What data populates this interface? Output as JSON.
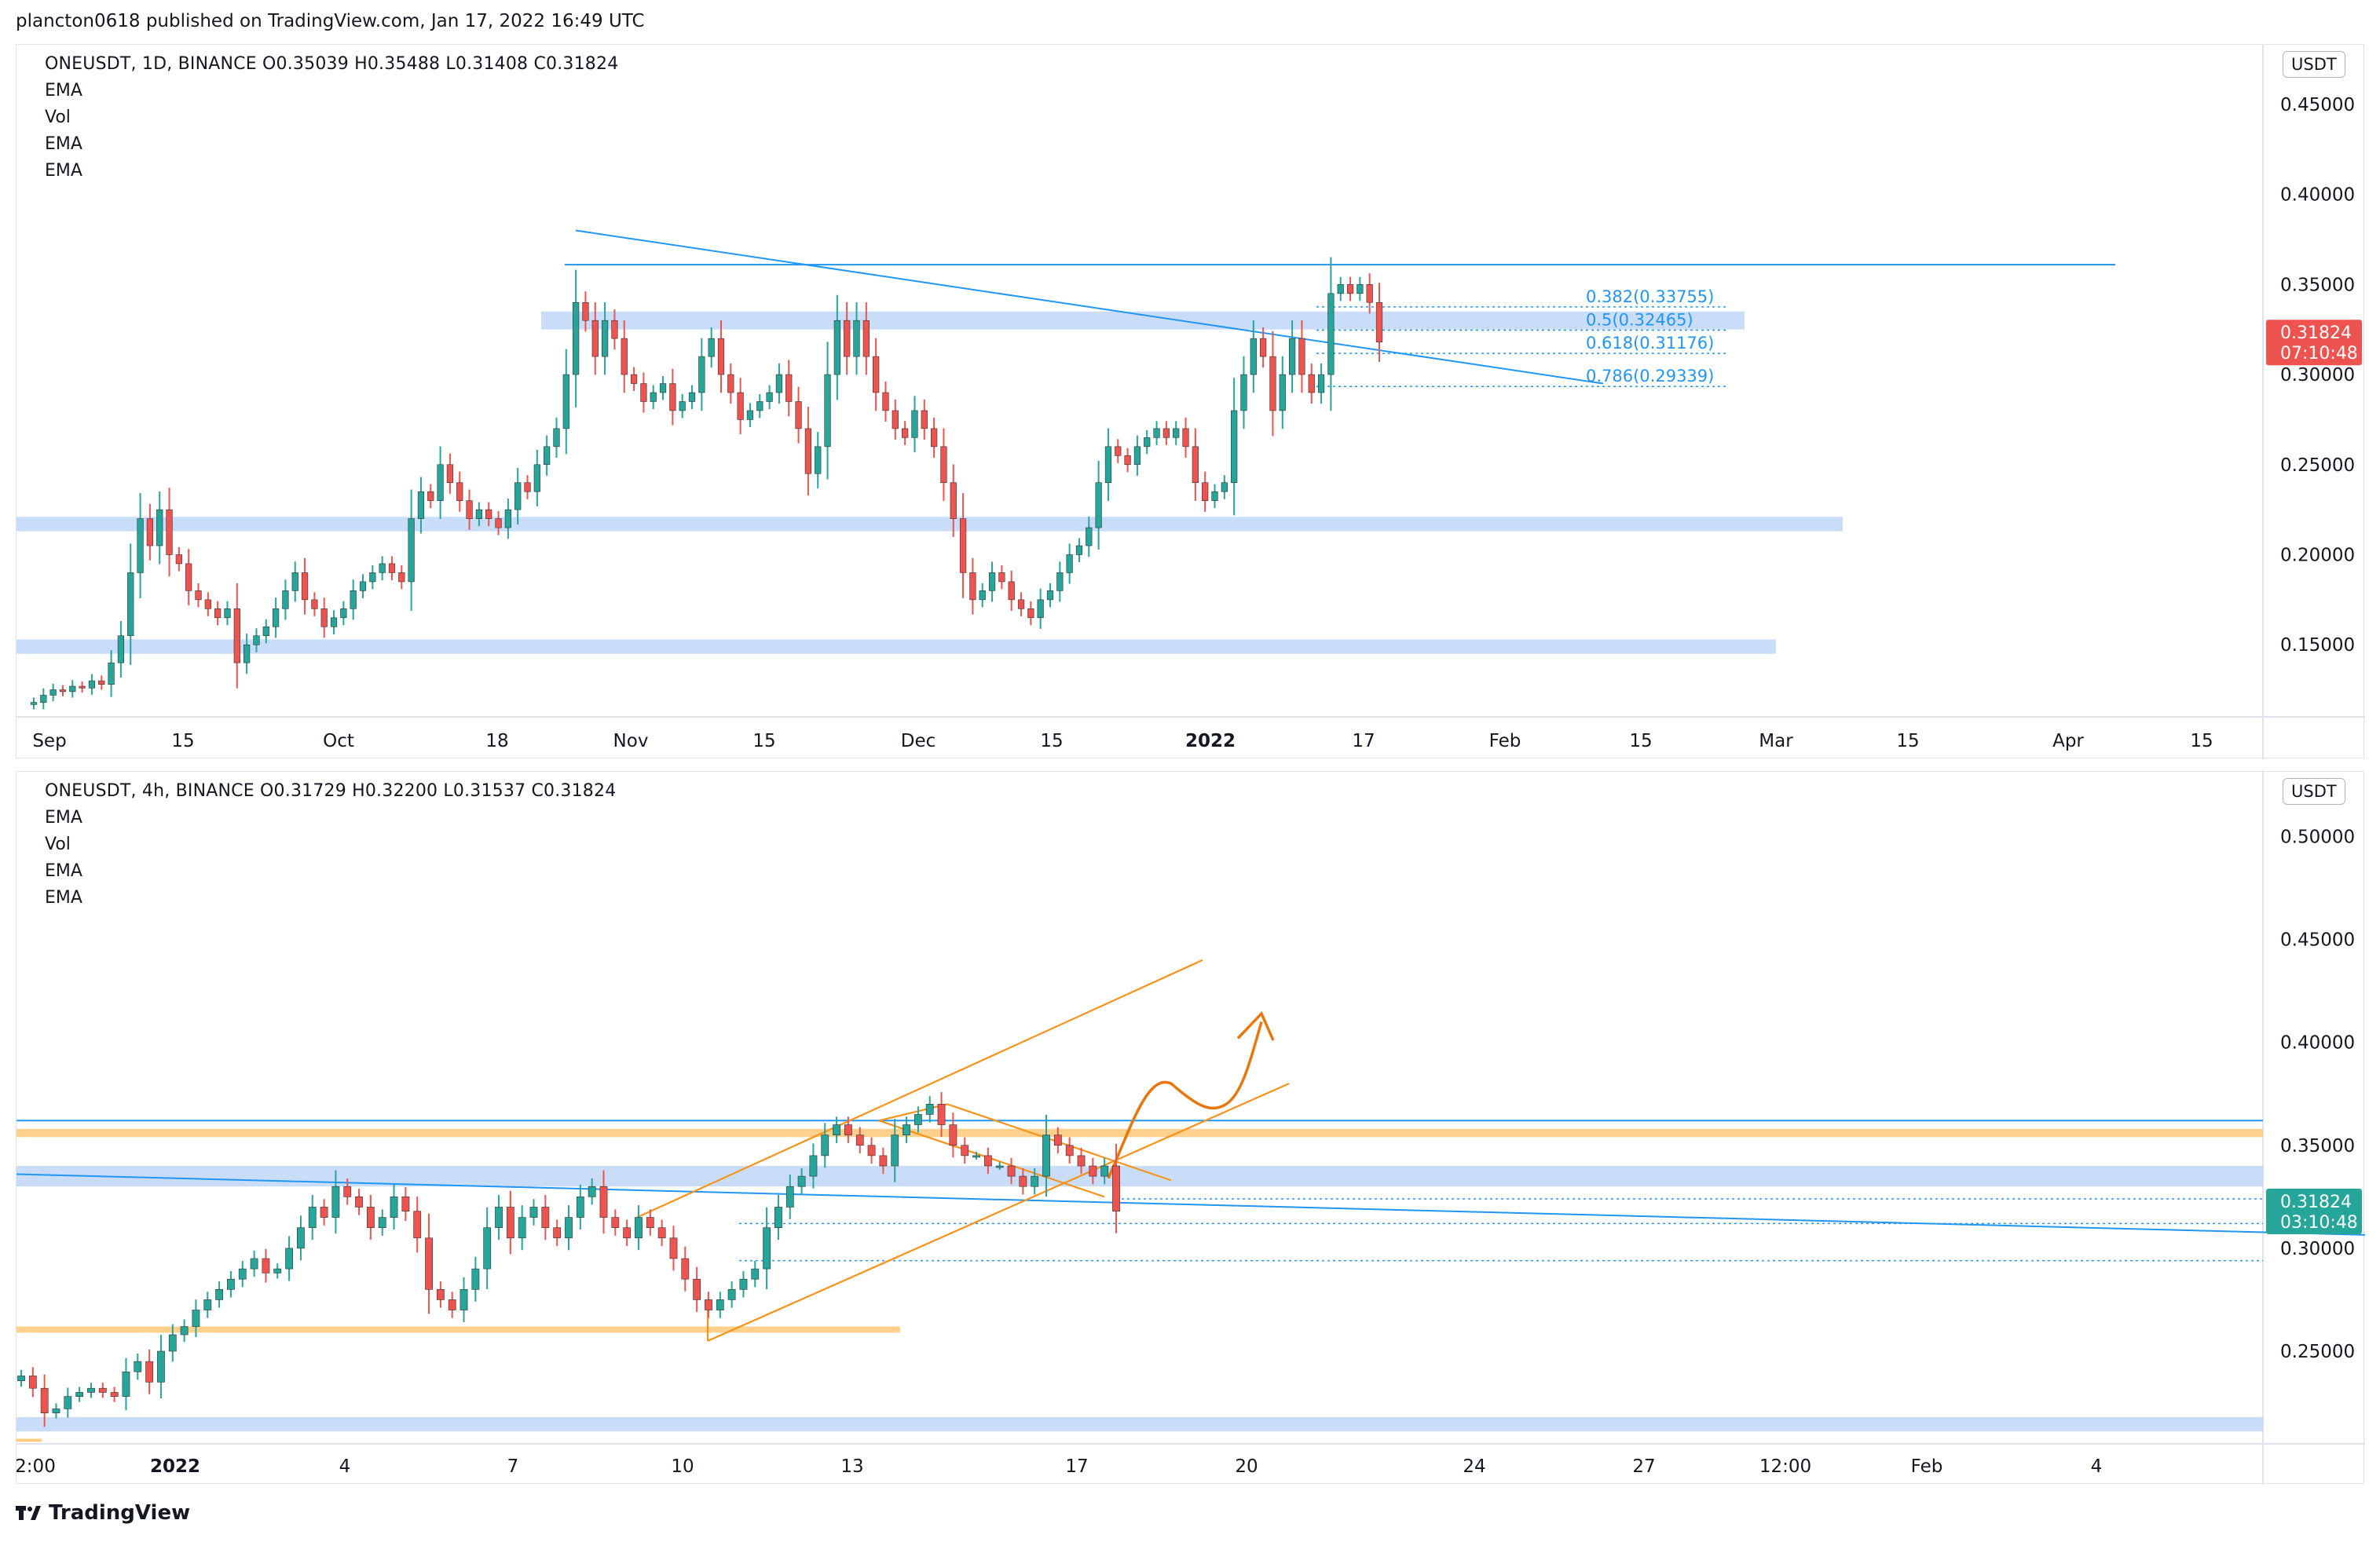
{
  "header": {
    "text": "plancton0618 published on TradingView.com, Jan 17, 2022 16:49 UTC"
  },
  "footer": {
    "brand": "TradingView"
  },
  "colors": {
    "up": "#26a69a",
    "down": "#ef5350",
    "blue_line": "#2196f3",
    "zone": "#bbd4f7",
    "orange": "#f7931a",
    "orange_zone": "#ffcc80"
  },
  "chart_data": [
    {
      "type": "candlestick",
      "symbol_line": "ONEUSDT, 1D, BINANCE  O0.35039  H0.35488  L0.31408  C0.31824",
      "indicators": [
        "EMA",
        "Vol",
        "EMA",
        "EMA"
      ],
      "unit": "USDT",
      "ylim": [
        0.11,
        0.47
      ],
      "y_ticks": [
        "0.45000",
        "0.40000",
        "0.35000",
        "0.30000",
        "0.25000",
        "0.20000",
        "0.15000"
      ],
      "x_ticks": [
        "Sep",
        "15",
        "Oct",
        "18",
        "Nov",
        "15",
        "Dec",
        "15",
        "2022",
        "17",
        "Feb",
        "15",
        "Mar",
        "15",
        "Apr",
        "15"
      ],
      "last_price": "0.31824",
      "countdown": "07:10:48",
      "fib_levels": [
        {
          "label": "0.382(0.33755)",
          "value": 0.33755
        },
        {
          "label": "0.5(0.32465)",
          "value": 0.32465
        },
        {
          "label": "0.618(0.31176)",
          "value": 0.31176
        },
        {
          "label": "0.786(0.29339)",
          "value": 0.29339
        }
      ],
      "zones": [
        [
          0.325,
          0.335
        ],
        [
          0.213,
          0.221
        ],
        [
          0.145,
          0.153
        ]
      ],
      "close_series": [
        0.118,
        0.122,
        0.125,
        0.124,
        0.127,
        0.126,
        0.13,
        0.128,
        0.14,
        0.155,
        0.19,
        0.22,
        0.205,
        0.225,
        0.2,
        0.195,
        0.18,
        0.175,
        0.17,
        0.165,
        0.17,
        0.14,
        0.15,
        0.155,
        0.16,
        0.17,
        0.18,
        0.19,
        0.175,
        0.17,
        0.16,
        0.165,
        0.17,
        0.18,
        0.185,
        0.19,
        0.195,
        0.19,
        0.185,
        0.22,
        0.235,
        0.23,
        0.25,
        0.24,
        0.23,
        0.22,
        0.225,
        0.22,
        0.215,
        0.225,
        0.24,
        0.235,
        0.25,
        0.26,
        0.27,
        0.3,
        0.34,
        0.33,
        0.31,
        0.33,
        0.32,
        0.3,
        0.295,
        0.285,
        0.29,
        0.295,
        0.28,
        0.285,
        0.29,
        0.31,
        0.32,
        0.3,
        0.29,
        0.275,
        0.28,
        0.285,
        0.29,
        0.3,
        0.285,
        0.27,
        0.245,
        0.26,
        0.3,
        0.33,
        0.31,
        0.33,
        0.31,
        0.29,
        0.28,
        0.27,
        0.265,
        0.28,
        0.27,
        0.26,
        0.24,
        0.22,
        0.19,
        0.175,
        0.18,
        0.19,
        0.185,
        0.175,
        0.17,
        0.165,
        0.175,
        0.18,
        0.19,
        0.2,
        0.205,
        0.215,
        0.24,
        0.26,
        0.255,
        0.25,
        0.26,
        0.265,
        0.27,
        0.265,
        0.27,
        0.26,
        0.24,
        0.23,
        0.235,
        0.24,
        0.28,
        0.3,
        0.32,
        0.31,
        0.28,
        0.3,
        0.32,
        0.3,
        0.29,
        0.3,
        0.345,
        0.35,
        0.345,
        0.35,
        0.34,
        0.318
      ]
    },
    {
      "type": "candlestick",
      "symbol_line": "ONEUSDT, 4h, BINANCE  O0.31729  H0.32200  L0.31537  C0.31824",
      "indicators": [
        "EMA",
        "Vol",
        "EMA",
        "EMA"
      ],
      "unit": "USDT",
      "ylim": [
        0.205,
        0.52
      ],
      "y_ticks": [
        "0.50000",
        "0.45000",
        "0.40000",
        "0.35000",
        "0.30000",
        "0.25000"
      ],
      "x_ticks": [
        "2:00",
        "2022",
        "4",
        "7",
        "10",
        "13",
        "17",
        "20",
        "24",
        "27",
        "12:00",
        "Feb",
        "4"
      ],
      "last_price": "0.31824",
      "countdown": "03:10:48",
      "close_series": [
        0.238,
        0.232,
        0.22,
        0.222,
        0.228,
        0.23,
        0.232,
        0.23,
        0.228,
        0.24,
        0.245,
        0.235,
        0.25,
        0.258,
        0.262,
        0.27,
        0.275,
        0.28,
        0.285,
        0.29,
        0.295,
        0.288,
        0.29,
        0.3,
        0.31,
        0.32,
        0.315,
        0.33,
        0.325,
        0.32,
        0.31,
        0.315,
        0.325,
        0.318,
        0.305,
        0.28,
        0.275,
        0.27,
        0.28,
        0.29,
        0.31,
        0.32,
        0.305,
        0.315,
        0.32,
        0.31,
        0.305,
        0.315,
        0.325,
        0.33,
        0.315,
        0.31,
        0.305,
        0.315,
        0.31,
        0.305,
        0.295,
        0.285,
        0.275,
        0.27,
        0.275,
        0.28,
        0.285,
        0.29,
        0.31,
        0.32,
        0.33,
        0.335,
        0.345,
        0.355,
        0.36,
        0.355,
        0.35,
        0.345,
        0.34,
        0.355,
        0.36,
        0.365,
        0.37,
        0.36,
        0.35,
        0.345,
        0.345,
        0.34,
        0.34,
        0.335,
        0.33,
        0.335,
        0.355,
        0.35,
        0.345,
        0.34,
        0.335,
        0.34,
        0.318
      ]
    }
  ]
}
